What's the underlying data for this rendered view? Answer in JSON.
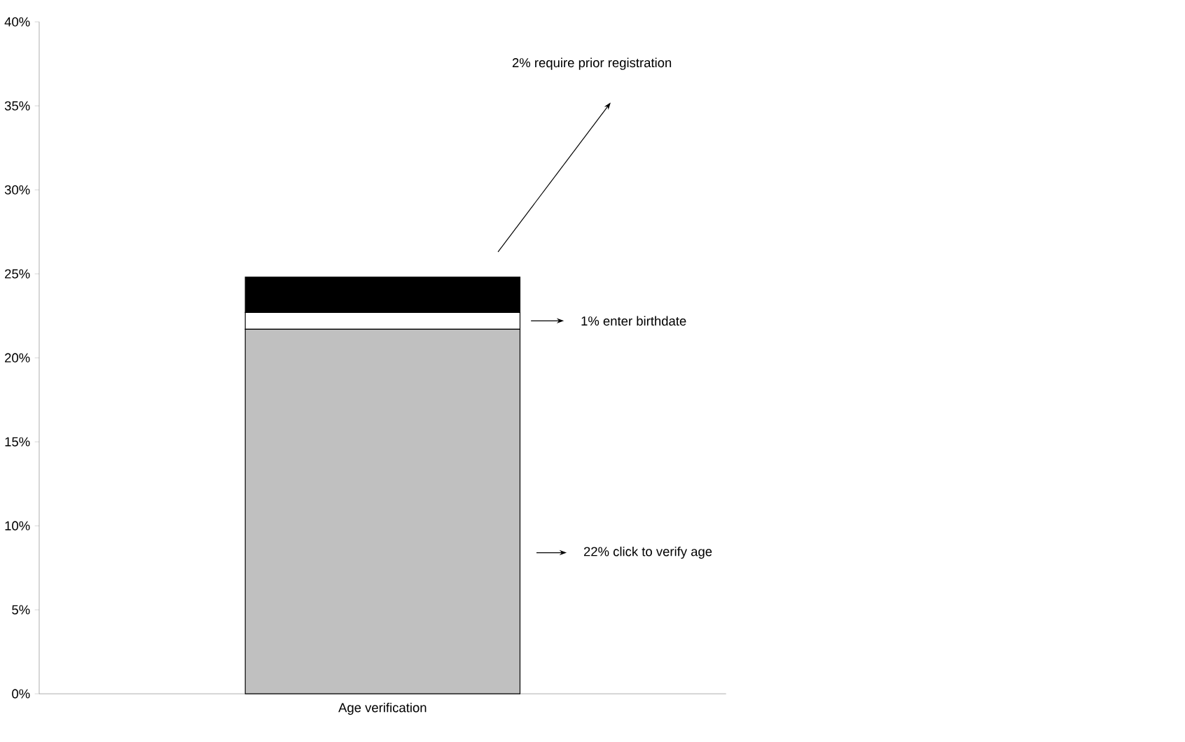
{
  "chart_data": {
    "type": "bar",
    "stacked": true,
    "categories": [
      "Age verification"
    ],
    "series": [
      {
        "color": "#c0c0c0",
        "values": [
          21.7
        ]
      },
      {
        "color": "#ffffff",
        "values": [
          1.0
        ]
      },
      {
        "color": "#000000",
        "values": [
          2.1
        ]
      }
    ],
    "ylim": [
      0,
      40
    ],
    "yticks": [
      {
        "value": 0,
        "label": "0%"
      },
      {
        "value": 5,
        "label": "5%"
      },
      {
        "value": 10,
        "label": "10%"
      },
      {
        "value": 15,
        "label": "15%"
      },
      {
        "value": 20,
        "label": "20%"
      },
      {
        "value": 25,
        "label": "25%"
      },
      {
        "value": 30,
        "label": "30%"
      },
      {
        "value": 35,
        "label": "35%"
      },
      {
        "value": 40,
        "label": "40%"
      }
    ],
    "annotations": [
      "2% require prior registration",
      "1% enter birthdate",
      "22% click to verify age"
    ]
  }
}
